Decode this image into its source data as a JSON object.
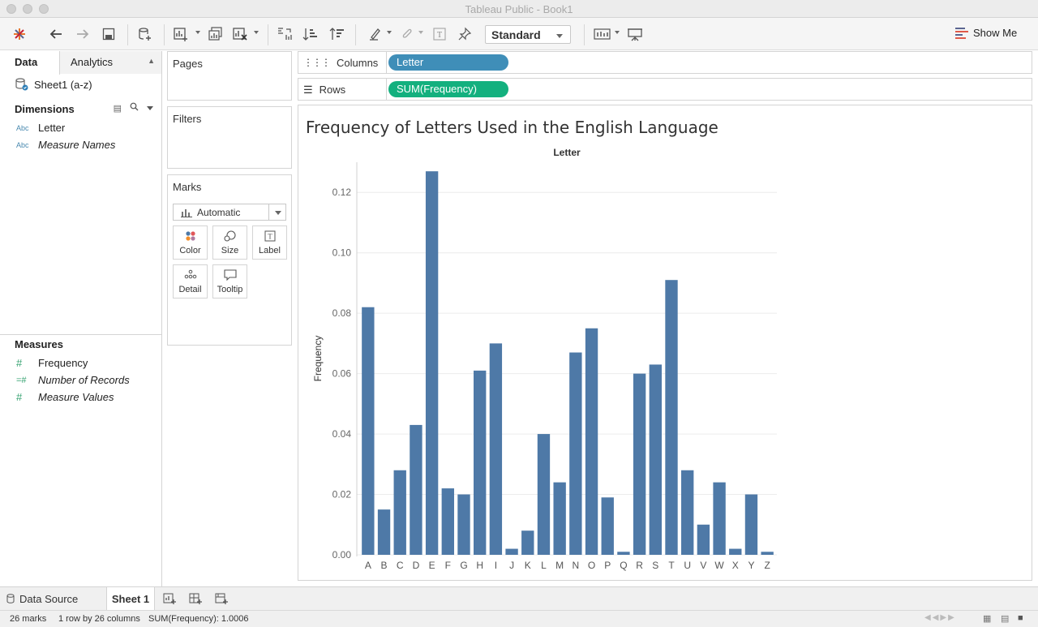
{
  "window": {
    "title": "Tableau Public - Book1"
  },
  "toolbar": {
    "fit_select": "Standard",
    "show_me": "Show Me"
  },
  "data_pane": {
    "tabs": {
      "data": "Data",
      "analytics": "Analytics"
    },
    "datasource": "Sheet1 (a-z)",
    "dimensions_label": "Dimensions",
    "dimensions": [
      {
        "type": "Abc",
        "name": "Letter"
      },
      {
        "type": "Abc",
        "name": "Measure Names"
      }
    ],
    "measures_label": "Measures",
    "measures": [
      {
        "type": "#",
        "name": "Frequency"
      },
      {
        "type": "=#",
        "name": "Number of Records"
      },
      {
        "type": "#",
        "name": "Measure Values"
      }
    ]
  },
  "cards": {
    "pages": "Pages",
    "filters": "Filters",
    "marks": "Marks",
    "mark_type": "Automatic",
    "buttons": {
      "color": "Color",
      "size": "Size",
      "label": "Label",
      "detail": "Detail",
      "tooltip": "Tooltip"
    }
  },
  "shelves": {
    "columns_label": "Columns",
    "columns_pill": "Letter",
    "rows_label": "Rows",
    "rows_pill": "SUM(Frequency)",
    "columns_color": "#3f8eb8",
    "rows_color": "#13b07e"
  },
  "chart_data": {
    "type": "bar",
    "title": "Frequency of Letters Used in the English Language",
    "header": "Letter",
    "ylabel": "Frequency",
    "categories": [
      "A",
      "B",
      "C",
      "D",
      "E",
      "F",
      "G",
      "H",
      "I",
      "J",
      "K",
      "L",
      "M",
      "N",
      "O",
      "P",
      "Q",
      "R",
      "S",
      "T",
      "U",
      "V",
      "W",
      "X",
      "Y",
      "Z"
    ],
    "values": [
      0.082,
      0.015,
      0.028,
      0.043,
      0.127,
      0.022,
      0.02,
      0.061,
      0.07,
      0.002,
      0.008,
      0.04,
      0.024,
      0.067,
      0.075,
      0.019,
      0.001,
      0.06,
      0.063,
      0.091,
      0.028,
      0.01,
      0.024,
      0.002,
      0.02,
      0.001
    ],
    "yticks": [
      "0.00",
      "0.02",
      "0.04",
      "0.06",
      "0.08",
      "0.10",
      "0.12"
    ],
    "ylim": [
      0,
      0.13
    ],
    "bar_color": "#4e79a7",
    "grid": true
  },
  "sheet_tabs": {
    "data_source": "Data Source",
    "sheet1": "Sheet 1"
  },
  "status": {
    "marks": "26 marks",
    "dims": "1 row by 26 columns",
    "sum": "SUM(Frequency): 1.0006"
  }
}
